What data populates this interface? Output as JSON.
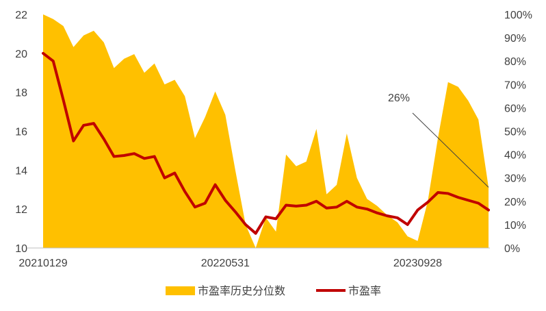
{
  "chart_data": {
    "type": "line",
    "x_ticks": [
      "20210129",
      "20220531",
      "20230928"
    ],
    "y_left": {
      "min": 10,
      "max": 22,
      "step": 2,
      "ticks": [
        "10",
        "12",
        "14",
        "16",
        "18",
        "20",
        "22"
      ]
    },
    "y_right": {
      "min": 0,
      "max": 100,
      "step": 10,
      "ticks": [
        "0%",
        "10%",
        "20%",
        "30%",
        "40%",
        "50%",
        "60%",
        "70%",
        "80%",
        "90%",
        "100%"
      ]
    },
    "grid": false,
    "legend_position": "bottom",
    "series": [
      {
        "name": "市盈率历史分位数",
        "type": "area",
        "axis": "right",
        "color": "#FFC000",
        "values": [
          100,
          98,
          95,
          86,
          91,
          93,
          88,
          77,
          81,
          83,
          75,
          79,
          70,
          72,
          65,
          47,
          56,
          67,
          57,
          33,
          10,
          0,
          13,
          7,
          40,
          35,
          37,
          51,
          23,
          27,
          49,
          30,
          21,
          18,
          14,
          11,
          5,
          3,
          20,
          47,
          71,
          69,
          63,
          55,
          26
        ]
      },
      {
        "name": "市盈率",
        "type": "line",
        "axis": "left",
        "color": "#C00000",
        "values": [
          20.0,
          19.6,
          17.6,
          15.5,
          16.3,
          16.4,
          15.6,
          14.7,
          14.75,
          14.85,
          14.6,
          14.7,
          13.6,
          13.85,
          12.9,
          12.1,
          12.3,
          13.25,
          12.45,
          11.85,
          11.2,
          10.75,
          11.6,
          11.5,
          12.2,
          12.15,
          12.2,
          12.4,
          12.05,
          12.1,
          12.4,
          12.1,
          12.0,
          11.8,
          11.65,
          11.55,
          11.2,
          11.95,
          12.35,
          12.85,
          12.8,
          12.6,
          12.45,
          12.3,
          11.95
        ]
      }
    ],
    "annotations": [
      {
        "text": "26%",
        "series": "市盈率历史分位数",
        "point_index": 44
      }
    ]
  }
}
